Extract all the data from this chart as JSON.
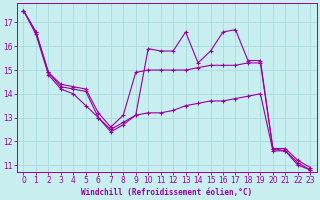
{
  "xlabel": "Windchill (Refroidissement éolien,°C)",
  "bg_color": "#c8eef0",
  "line_color": "#990099",
  "grid_color": "#aadddd",
  "series1_y": [
    17.5,
    16.6,
    14.9,
    14.3,
    14.2,
    14.1,
    13.0,
    12.5,
    12.8,
    13.1,
    15.9,
    15.8,
    15.8,
    16.6,
    15.3,
    15.8,
    16.6,
    16.7,
    15.4,
    15.4,
    11.7,
    11.6,
    11.1,
    10.8
  ],
  "series2_y": [
    17.5,
    16.6,
    14.9,
    14.4,
    14.3,
    14.2,
    13.2,
    12.6,
    13.1,
    14.9,
    15.0,
    15.0,
    15.0,
    15.0,
    15.1,
    15.2,
    15.2,
    15.2,
    15.3,
    15.3,
    11.7,
    11.7,
    11.2,
    10.9
  ],
  "series3_y": [
    17.5,
    16.5,
    14.8,
    14.2,
    14.0,
    13.5,
    13.0,
    12.4,
    12.7,
    13.1,
    13.2,
    13.2,
    13.3,
    13.5,
    13.6,
    13.7,
    13.7,
    13.8,
    13.9,
    14.0,
    11.6,
    11.6,
    11.0,
    10.8
  ],
  "xlim": [
    -0.5,
    23.5
  ],
  "ylim": [
    10.7,
    17.8
  ],
  "xticks": [
    0,
    1,
    2,
    3,
    4,
    5,
    6,
    7,
    8,
    9,
    10,
    11,
    12,
    13,
    14,
    15,
    16,
    17,
    18,
    19,
    20,
    21,
    22,
    23
  ],
  "yticks": [
    11,
    12,
    13,
    14,
    15,
    16,
    17
  ]
}
